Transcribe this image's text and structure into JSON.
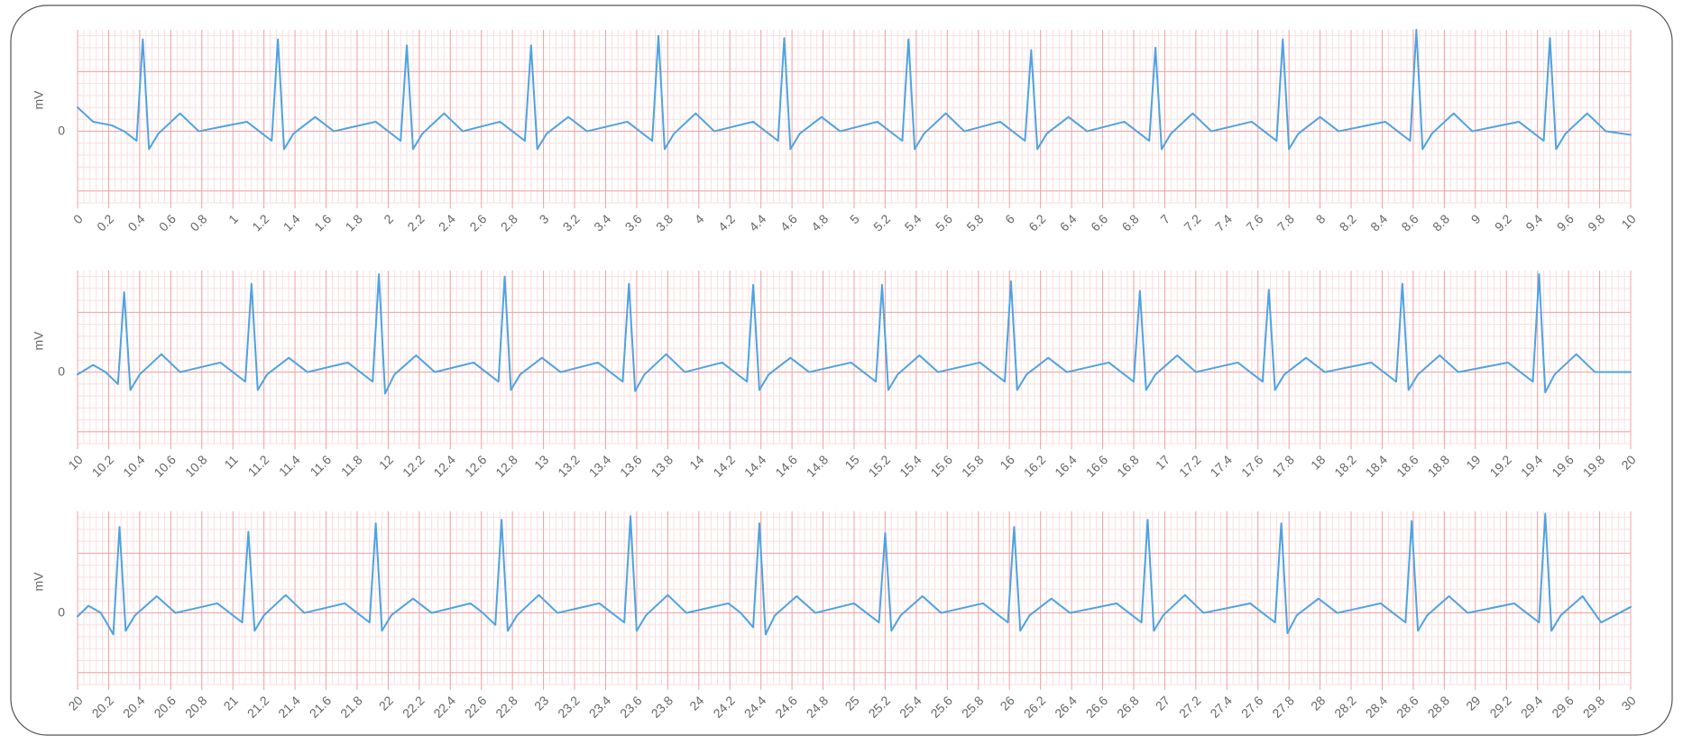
{
  "chart_data": [
    {
      "type": "line",
      "y_label": "mV",
      "color": "#4da3e3",
      "grid": true,
      "grid_minor_x": 0.04,
      "grid_major_y": 0.5,
      "grid_minor_y": 0.1,
      "xlim": [
        0,
        10
      ],
      "ylim": [
        -0.6,
        0.85
      ],
      "yticks": [
        0
      ],
      "xticks": [
        0,
        0.2,
        0.4,
        0.6,
        0.8,
        1,
        1.2,
        1.4,
        1.6,
        1.8,
        2,
        2.2,
        2.4,
        2.6,
        2.8,
        3,
        3.2,
        3.4,
        3.6,
        3.8,
        4,
        4.2,
        4.4,
        4.6,
        4.8,
        5,
        5.2,
        5.4,
        5.6,
        5.8,
        6,
        6.2,
        6.4,
        6.6,
        6.8,
        7,
        7.2,
        7.4,
        7.6,
        7.8,
        8,
        8.2,
        8.4,
        8.6,
        8.8,
        9,
        9.2,
        9.4,
        9.6,
        9.8,
        10
      ],
      "x": [
        0,
        0.1,
        0.22,
        0.3,
        0.38,
        0.42,
        0.46,
        0.52,
        0.66,
        0.78,
        1.09,
        1.17,
        1.25,
        1.29,
        1.33,
        1.39,
        1.53,
        1.65,
        1.92,
        2,
        2.08,
        2.12,
        2.16,
        2.22,
        2.36,
        2.48,
        2.72,
        2.8,
        2.88,
        2.92,
        2.96,
        3.02,
        3.16,
        3.28,
        3.54,
        3.62,
        3.7,
        3.74,
        3.78,
        3.84,
        3.98,
        4.1,
        4.35,
        4.43,
        4.51,
        4.55,
        4.59,
        4.65,
        4.79,
        4.91,
        5.15,
        5.23,
        5.31,
        5.35,
        5.39,
        5.45,
        5.59,
        5.71,
        5.94,
        6.02,
        6.1,
        6.14,
        6.18,
        6.24,
        6.38,
        6.5,
        6.74,
        6.82,
        6.9,
        6.94,
        6.98,
        7.04,
        7.18,
        7.3,
        7.56,
        7.64,
        7.72,
        7.76,
        7.8,
        7.86,
        8,
        8.12,
        8.42,
        8.5,
        8.58,
        8.62,
        8.66,
        8.72,
        8.86,
        8.98,
        9.28,
        9.36,
        9.44,
        9.48,
        9.52,
        9.58,
        9.72,
        9.84,
        10
      ],
      "values": [
        0.2,
        0.08,
        0.05,
        0,
        -0.08,
        0.77,
        -0.15,
        -0.02,
        0.15,
        0,
        0.08,
        0,
        -0.08,
        0.77,
        -0.15,
        -0.02,
        0.12,
        0,
        0.08,
        0,
        -0.08,
        0.72,
        -0.15,
        -0.02,
        0.15,
        0,
        0.08,
        0,
        -0.08,
        0.72,
        -0.15,
        -0.02,
        0.12,
        0,
        0.08,
        0,
        -0.08,
        0.8,
        -0.15,
        -0.02,
        0.15,
        0,
        0.08,
        0,
        -0.08,
        0.78,
        -0.15,
        -0.02,
        0.12,
        0,
        0.08,
        0,
        -0.08,
        0.77,
        -0.15,
        -0.02,
        0.15,
        0,
        0.08,
        0,
        -0.08,
        0.68,
        -0.15,
        -0.02,
        0.12,
        0,
        0.08,
        0,
        -0.08,
        0.7,
        -0.15,
        -0.02,
        0.15,
        0,
        0.08,
        0,
        -0.08,
        0.77,
        -0.15,
        -0.02,
        0.12,
        0,
        0.08,
        0,
        -0.08,
        0.85,
        -0.15,
        -0.02,
        0.15,
        0,
        0.08,
        0,
        -0.08,
        0.78,
        -0.15,
        -0.02,
        0.15,
        0,
        -0.03
      ]
    },
    {
      "type": "line",
      "y_label": "mV",
      "color": "#4da3e3",
      "grid": true,
      "grid_minor_x": 0.04,
      "grid_major_y": 0.5,
      "grid_minor_y": 0.1,
      "xlim": [
        10,
        20
      ],
      "ylim": [
        -0.6,
        0.85
      ],
      "yticks": [
        0
      ],
      "xticks": [
        10,
        10.2,
        10.4,
        10.6,
        10.8,
        11,
        11.2,
        11.4,
        11.6,
        11.8,
        12,
        12.2,
        12.4,
        12.6,
        12.8,
        13,
        13.2,
        13.4,
        13.6,
        13.8,
        14,
        14.2,
        14.4,
        14.6,
        14.8,
        15,
        15.2,
        15.4,
        15.6,
        15.8,
        16,
        16.2,
        16.4,
        16.6,
        16.8,
        17,
        17.2,
        17.4,
        17.6,
        17.8,
        18,
        18.2,
        18.4,
        18.6,
        18.8,
        19,
        19.2,
        19.4,
        19.6,
        19.8,
        20
      ],
      "x": [
        10,
        10.1,
        10.18,
        10.26,
        10.3,
        10.34,
        10.4,
        10.54,
        10.66,
        10.92,
        11,
        11.08,
        11.12,
        11.16,
        11.22,
        11.36,
        11.48,
        11.74,
        11.82,
        11.9,
        11.94,
        11.98,
        12.04,
        12.18,
        12.3,
        12.55,
        12.63,
        12.71,
        12.75,
        12.79,
        12.85,
        12.99,
        13.11,
        13.35,
        13.43,
        13.51,
        13.55,
        13.59,
        13.65,
        13.79,
        13.91,
        14.15,
        14.23,
        14.31,
        14.35,
        14.39,
        14.45,
        14.59,
        14.71,
        14.98,
        15.06,
        15.14,
        15.18,
        15.22,
        15.28,
        15.42,
        15.54,
        15.81,
        15.89,
        15.97,
        16.01,
        16.05,
        16.11,
        16.25,
        16.37,
        16.64,
        16.72,
        16.8,
        16.84,
        16.88,
        16.94,
        17.08,
        17.2,
        17.47,
        17.55,
        17.63,
        17.67,
        17.71,
        17.77,
        17.91,
        18.03,
        18.33,
        18.41,
        18.49,
        18.53,
        18.57,
        18.63,
        18.77,
        18.89,
        19.21,
        19.29,
        19.37,
        19.41,
        19.45,
        19.51,
        19.65,
        19.77,
        20
      ],
      "values": [
        -0.02,
        0.06,
        0,
        -0.1,
        0.67,
        -0.15,
        -0.02,
        0.15,
        0,
        0.08,
        0,
        -0.08,
        0.74,
        -0.15,
        -0.02,
        0.12,
        0,
        0.08,
        0,
        -0.08,
        0.82,
        -0.18,
        -0.02,
        0.14,
        0,
        0.08,
        0,
        -0.08,
        0.8,
        -0.15,
        -0.02,
        0.12,
        0,
        0.08,
        0,
        -0.08,
        0.74,
        -0.16,
        -0.02,
        0.15,
        0,
        0.08,
        0,
        -0.08,
        0.73,
        -0.15,
        -0.02,
        0.12,
        0,
        0.08,
        0,
        -0.08,
        0.73,
        -0.15,
        -0.02,
        0.14,
        0,
        0.08,
        0,
        -0.08,
        0.76,
        -0.15,
        -0.02,
        0.12,
        0,
        0.08,
        0,
        -0.08,
        0.68,
        -0.15,
        -0.02,
        0.14,
        0,
        0.08,
        0,
        -0.08,
        0.69,
        -0.15,
        -0.02,
        0.12,
        0,
        0.08,
        0,
        -0.08,
        0.74,
        -0.15,
        -0.02,
        0.14,
        0,
        0.08,
        0,
        -0.08,
        0.82,
        -0.17,
        -0.02,
        0.15,
        0,
        0
      ]
    },
    {
      "type": "line",
      "y_label": "mV",
      "color": "#4da3e3",
      "grid": true,
      "grid_minor_x": 0.04,
      "grid_major_y": 0.5,
      "grid_minor_y": 0.1,
      "xlim": [
        20,
        30
      ],
      "ylim": [
        -0.6,
        0.85
      ],
      "yticks": [
        0
      ],
      "xticks": [
        20,
        20.2,
        20.4,
        20.6,
        20.8,
        21,
        21.2,
        21.4,
        21.6,
        21.8,
        22,
        22.2,
        22.4,
        22.6,
        22.8,
        23,
        23.2,
        23.4,
        23.6,
        23.8,
        24,
        24.2,
        24.4,
        24.6,
        24.8,
        25,
        25.2,
        25.4,
        25.6,
        25.8,
        26,
        26.2,
        26.4,
        26.6,
        26.8,
        27,
        27.2,
        27.4,
        27.6,
        27.8,
        28,
        28.2,
        28.4,
        28.6,
        28.8,
        29,
        29.2,
        29.4,
        29.6,
        29.8,
        30
      ],
      "x": [
        20,
        20.07,
        20.15,
        20.23,
        20.27,
        20.31,
        20.37,
        20.51,
        20.63,
        20.9,
        20.98,
        21.06,
        21.1,
        21.14,
        21.2,
        21.34,
        21.46,
        21.72,
        21.8,
        21.88,
        21.92,
        21.96,
        22.02,
        22.16,
        22.28,
        22.53,
        22.61,
        22.69,
        22.73,
        22.77,
        22.83,
        22.97,
        23.09,
        23.36,
        23.44,
        23.52,
        23.56,
        23.6,
        23.66,
        23.8,
        23.92,
        24.19,
        24.27,
        24.35,
        24.39,
        24.43,
        24.49,
        24.63,
        24.75,
        25,
        25.08,
        25.16,
        25.2,
        25.24,
        25.3,
        25.44,
        25.56,
        25.83,
        25.91,
        25.99,
        26.03,
        26.07,
        26.13,
        26.27,
        26.39,
        26.69,
        26.77,
        26.85,
        26.89,
        26.93,
        26.99,
        27.13,
        27.25,
        27.55,
        27.63,
        27.71,
        27.75,
        27.79,
        27.85,
        27.99,
        28.11,
        28.39,
        28.47,
        28.55,
        28.59,
        28.63,
        28.69,
        28.83,
        28.95,
        29.25,
        29.33,
        29.41,
        29.45,
        29.49,
        29.55,
        29.69,
        29.81,
        30
      ],
      "values": [
        -0.03,
        0.06,
        0,
        -0.18,
        0.72,
        -0.15,
        -0.02,
        0.14,
        0,
        0.08,
        0,
        -0.08,
        0.68,
        -0.15,
        -0.02,
        0.15,
        0,
        0.08,
        0,
        -0.08,
        0.75,
        -0.15,
        -0.02,
        0.12,
        0,
        0.08,
        0,
        -0.1,
        0.78,
        -0.15,
        -0.02,
        0.15,
        0,
        0.08,
        0,
        -0.08,
        0.81,
        -0.15,
        -0.02,
        0.15,
        0,
        0.08,
        0,
        -0.12,
        0.75,
        -0.18,
        -0.02,
        0.14,
        0,
        0.08,
        0,
        -0.08,
        0.67,
        -0.15,
        -0.02,
        0.14,
        0,
        0.08,
        0,
        -0.08,
        0.72,
        -0.15,
        -0.02,
        0.12,
        0,
        0.08,
        0,
        -0.08,
        0.78,
        -0.15,
        -0.02,
        0.15,
        0,
        0.08,
        0,
        -0.08,
        0.75,
        -0.17,
        -0.02,
        0.12,
        0,
        0.08,
        0,
        -0.08,
        0.77,
        -0.15,
        -0.02,
        0.14,
        0,
        0.08,
        0,
        -0.08,
        0.83,
        -0.15,
        -0.02,
        0.14,
        -0.08,
        0.05
      ]
    }
  ]
}
